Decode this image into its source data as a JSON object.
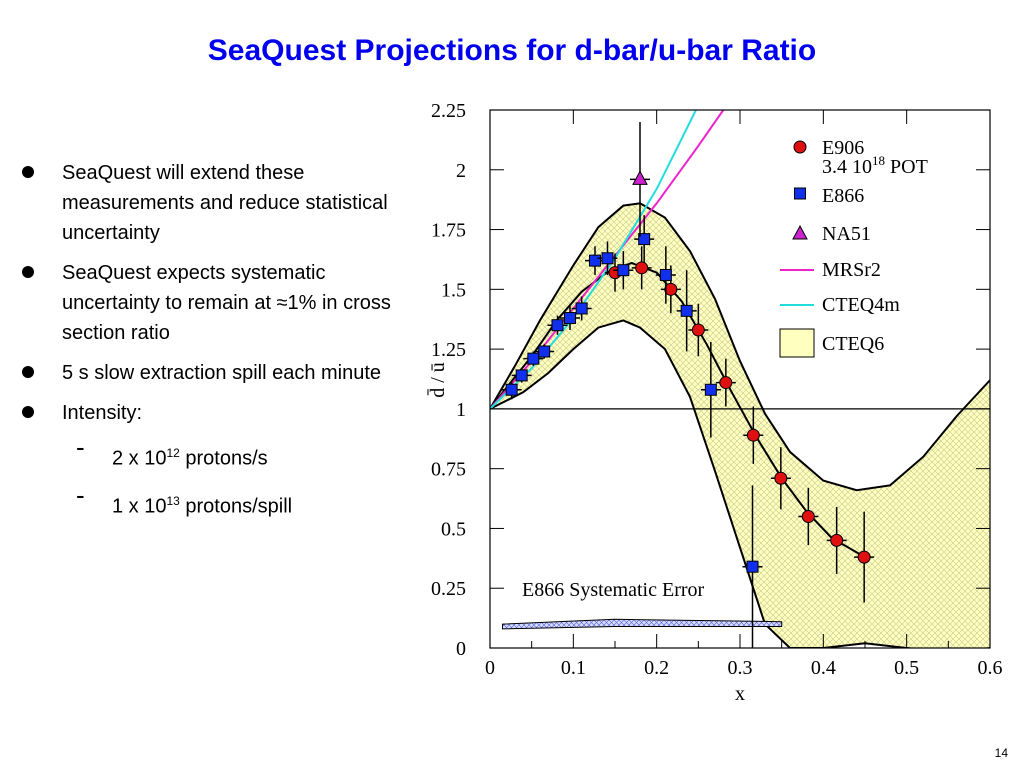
{
  "slide": {
    "title": "SeaQuest Projections for d-bar/u-bar Ratio",
    "page_number": "14",
    "bullets": [
      {
        "text": "SeaQuest will extend these measurements and reduce statistical uncertainty"
      },
      {
        "text": "SeaQuest expects systematic uncertainty to remain at ≈1% in cross section ratio"
      },
      {
        "text": "5 s slow extraction spill each minute"
      },
      {
        "text": "Intensity:"
      }
    ],
    "sub_bullets": [
      {
        "dash": "-",
        "base": "2 x 10",
        "exp": "12",
        "rest": " protons/s"
      },
      {
        "dash": "-",
        "base": "1 x 10",
        "exp": "13",
        "rest": " protons/spill"
      }
    ]
  },
  "chart_data": {
    "type": "scatter",
    "xlabel": "x",
    "ylabel": "d̄ / ū",
    "xlim": [
      0,
      0.6
    ],
    "ylim": [
      0,
      2.25
    ],
    "xticks": [
      "0",
      "0.1",
      "0.2",
      "0.3",
      "0.4",
      "0.5",
      "0.6"
    ],
    "yticks": [
      "0",
      "0.25",
      "0.5",
      "0.75",
      "1",
      "1.25",
      "1.5",
      "1.75",
      "2",
      "2.25"
    ],
    "reference_line_y": 1,
    "legend": {
      "placement": "top-right",
      "e906_line1": "E906",
      "e906_line2_base": "3.4 10",
      "e906_line2_exp": "18",
      "e906_line2_rest": " POT",
      "e866": "E866",
      "na51": "NA51",
      "mrsr2": "MRSr2",
      "cteq4m": "CTEQ4m",
      "cteq6": "CTEQ6"
    },
    "annotation": "E866 Systematic Error",
    "colors": {
      "e906": "#e01010",
      "e866": "#1030ee",
      "na51": "#cc22cc",
      "mrsr2": "#ee22cc",
      "cteq4m": "#22dddd",
      "cteq6_fill": "#ffffc0",
      "syst_fill": "#aab0ff"
    },
    "series": [
      {
        "name": "E906",
        "points": [
          {
            "x": 0.15,
            "y": 1.57,
            "err": 0.08
          },
          {
            "x": 0.182,
            "y": 1.59,
            "err": 0.09
          },
          {
            "x": 0.217,
            "y": 1.5,
            "err": 0.1
          },
          {
            "x": 0.25,
            "y": 1.33,
            "err": 0.11
          },
          {
            "x": 0.283,
            "y": 1.11,
            "err": 0.1
          },
          {
            "x": 0.316,
            "y": 0.89,
            "err": 0.12
          },
          {
            "x": 0.349,
            "y": 0.71,
            "err": 0.13
          },
          {
            "x": 0.382,
            "y": 0.55,
            "err": 0.12
          },
          {
            "x": 0.416,
            "y": 0.45,
            "err": 0.14
          },
          {
            "x": 0.449,
            "y": 0.38,
            "err": 0.19
          }
        ]
      },
      {
        "name": "E866",
        "points": [
          {
            "x": 0.026,
            "y": 1.08,
            "err": 0.04
          },
          {
            "x": 0.038,
            "y": 1.14,
            "err": 0.03
          },
          {
            "x": 0.052,
            "y": 1.21,
            "err": 0.03
          },
          {
            "x": 0.065,
            "y": 1.24,
            "err": 0.03
          },
          {
            "x": 0.081,
            "y": 1.35,
            "err": 0.04
          },
          {
            "x": 0.096,
            "y": 1.38,
            "err": 0.05
          },
          {
            "x": 0.11,
            "y": 1.42,
            "err": 0.05
          },
          {
            "x": 0.126,
            "y": 1.62,
            "err": 0.06
          },
          {
            "x": 0.141,
            "y": 1.63,
            "err": 0.07
          },
          {
            "x": 0.16,
            "y": 1.58,
            "err": 0.08
          },
          {
            "x": 0.185,
            "y": 1.71,
            "err": 0.1
          },
          {
            "x": 0.211,
            "y": 1.56,
            "err": 0.12
          },
          {
            "x": 0.236,
            "y": 1.41,
            "err": 0.17
          },
          {
            "x": 0.265,
            "y": 1.08,
            "err": 0.2
          },
          {
            "x": 0.315,
            "y": 0.34,
            "err": 0.34
          }
        ]
      },
      {
        "name": "NA51",
        "points": [
          {
            "x": 0.18,
            "y": 1.96,
            "err": 0.24
          }
        ]
      }
    ]
  }
}
